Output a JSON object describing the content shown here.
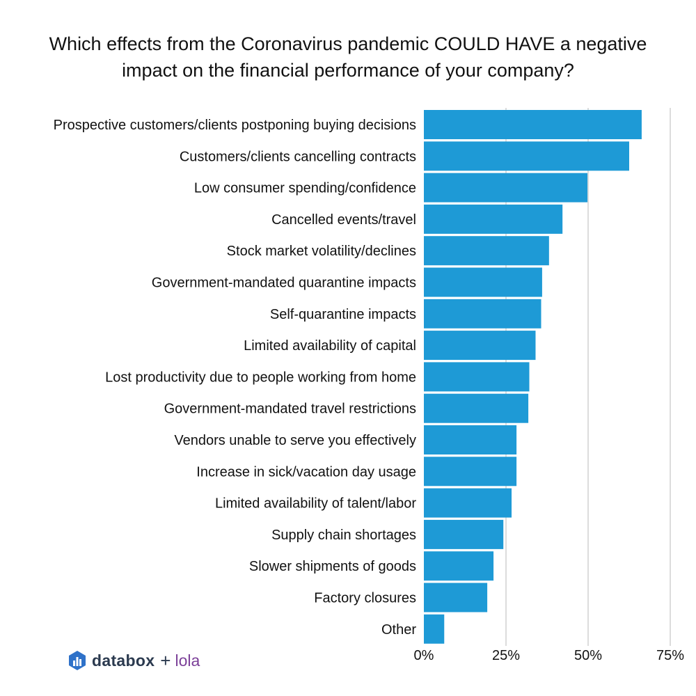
{
  "title_lines": [
    "Which effects from the Coronavirus pandemic COULD HAVE a negative",
    "impact on the financial performance of your company?"
  ],
  "branding": {
    "icon": "databox-bar-chart-icon",
    "name": "databox",
    "plus": "+",
    "partner": "lola",
    "name_color": "#2b3a4f",
    "partner_color": "#7b3f98"
  },
  "colors": {
    "bar": "#1e9ad6",
    "grid": "#d0d0d0",
    "text": "#111111"
  },
  "chart_data": {
    "type": "bar",
    "orientation": "horizontal",
    "title": "Which effects from the Coronavirus pandemic COULD HAVE a negative impact on the financial performance of your company?",
    "xlabel": "",
    "ylabel": "",
    "xlim": [
      0,
      75
    ],
    "grid": true,
    "ticks": [
      {
        "value": 0,
        "label": "0%"
      },
      {
        "value": 25,
        "label": "25%"
      },
      {
        "value": 50,
        "label": "50%"
      },
      {
        "value": 75,
        "label": "75%"
      }
    ],
    "categories": [
      "Prospective customers/clients postponing buying decisions",
      "Customers/clients cancelling contracts",
      "Low consumer spending/confidence",
      "Cancelled events/travel",
      "Stock market volatility/declines",
      "Government-mandated quarantine impacts",
      "Self-quarantine impacts",
      "Limited availability of capital",
      "Lost productivity due to people working from home",
      "Government-mandated travel restrictions",
      "Vendors unable to serve you effectively",
      "Increase in sick/vacation day usage",
      "Limited availability of talent/labor",
      "Supply chain shortages",
      "Slower shipments of goods",
      "Factory closures",
      "Other"
    ],
    "values": [
      66.3,
      62.5,
      49.8,
      42.2,
      38.1,
      36.0,
      35.7,
      34.0,
      32.1,
      31.8,
      28.2,
      28.2,
      26.7,
      24.2,
      21.2,
      19.3,
      6.2
    ]
  }
}
